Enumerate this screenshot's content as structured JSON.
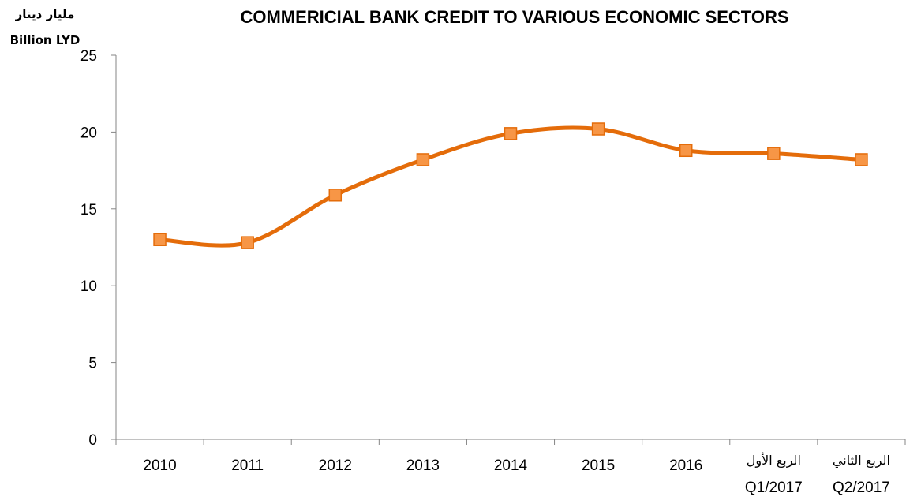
{
  "chart_data": {
    "type": "line",
    "title": "COMMERICIAL BANK CREDIT TO VARIOUS ECONOMIC SECTORS",
    "ylabel": [
      "مليار دينار",
      "Billion LYD"
    ],
    "xlabel": "",
    "ylim": [
      0,
      25
    ],
    "yticks": [
      0,
      5,
      10,
      15,
      20,
      25
    ],
    "categories": [
      {
        "en": "2010",
        "ar": ""
      },
      {
        "en": "2011",
        "ar": ""
      },
      {
        "en": "2012",
        "ar": ""
      },
      {
        "en": "2013",
        "ar": ""
      },
      {
        "en": "2014",
        "ar": ""
      },
      {
        "en": "2015",
        "ar": ""
      },
      {
        "en": "2016",
        "ar": ""
      },
      {
        "en": "Q1/2017",
        "ar": "الربع الأول"
      },
      {
        "en": "Q2/2017",
        "ar": "الربع الثاني"
      }
    ],
    "series": [
      {
        "values": [
          13.0,
          12.8,
          15.9,
          18.2,
          19.9,
          20.2,
          18.8,
          18.6,
          18.2
        ],
        "color": "#e46c0a",
        "marker": "square",
        "marker_color": "#f79646",
        "smooth": true
      }
    ],
    "grid": false,
    "legend": "none"
  }
}
